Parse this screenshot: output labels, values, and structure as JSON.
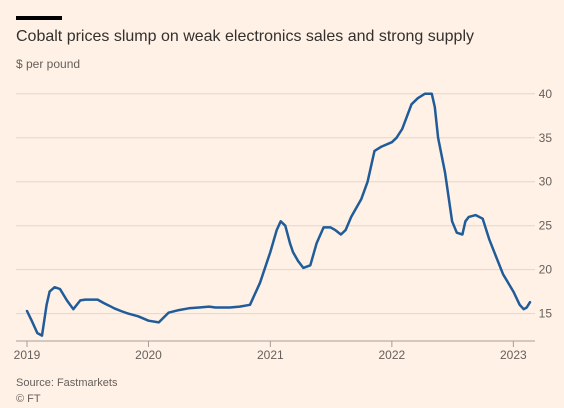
{
  "title": "Cobalt prices slump on weak electronics sales and strong supply",
  "subtitle": "$ per pound",
  "source": "Source: Fastmarkets",
  "copyright": "© FT",
  "colors": {
    "line": "#1f5c99",
    "grid": "#e3d7cc",
    "axis": "#66605c",
    "background": "#fff1e5"
  },
  "chart_data": {
    "type": "line",
    "title": "Cobalt prices slump on weak electronics sales and strong supply",
    "ylabel": "$ per pound",
    "xlabel": "",
    "ylim": [
      12,
      41
    ],
    "xlim": [
      "2019-01-01",
      "2023-03-01"
    ],
    "yticks": [
      15,
      20,
      25,
      30,
      35,
      40
    ],
    "xticks": [
      {
        "label": "2019",
        "date": "2019-01-01"
      },
      {
        "label": "2020",
        "date": "2020-01-01"
      },
      {
        "label": "2021",
        "date": "2021-01-01"
      },
      {
        "label": "2022",
        "date": "2022-01-01"
      },
      {
        "label": "2023",
        "date": "2023-01-01"
      }
    ],
    "grid": true,
    "y_axis_side": "right",
    "series": [
      {
        "x": [
          "2019-01-01",
          "2019-01-15",
          "2019-02-01",
          "2019-02-15",
          "2019-03-01",
          "2019-03-10",
          "2019-03-25",
          "2019-04-10",
          "2019-05-01",
          "2019-05-20",
          "2019-06-10",
          "2019-06-25",
          "2019-07-10",
          "2019-08-01",
          "2019-08-20",
          "2019-09-05",
          "2019-09-20",
          "2019-10-10",
          "2019-11-01",
          "2019-12-01",
          "2020-01-01",
          "2020-02-01",
          "2020-03-01",
          "2020-04-01",
          "2020-05-01",
          "2020-06-01",
          "2020-07-01",
          "2020-07-20",
          "2020-08-10",
          "2020-09-01",
          "2020-10-01",
          "2020-11-01",
          "2020-12-01",
          "2021-01-01",
          "2021-01-20",
          "2021-02-01",
          "2021-02-15",
          "2021-03-01",
          "2021-03-10",
          "2021-03-25",
          "2021-04-10",
          "2021-05-01",
          "2021-05-20",
          "2021-06-10",
          "2021-07-01",
          "2021-07-15",
          "2021-08-01",
          "2021-08-15",
          "2021-09-01",
          "2021-10-01",
          "2021-10-20",
          "2021-11-10",
          "2021-12-01",
          "2022-01-01",
          "2022-01-15",
          "2022-02-01",
          "2022-03-01",
          "2022-03-20",
          "2022-04-10",
          "2022-05-01",
          "2022-05-10",
          "2022-05-20",
          "2022-06-10",
          "2022-07-01",
          "2022-07-15",
          "2022-08-01",
          "2022-08-10",
          "2022-08-20",
          "2022-09-10",
          "2022-10-01",
          "2022-10-20",
          "2022-11-10",
          "2022-12-01",
          "2023-01-01",
          "2023-01-20",
          "2023-02-01",
          "2023-02-10",
          "2023-02-20"
        ],
        "values": [
          15.3,
          14.2,
          12.8,
          12.5,
          16.0,
          17.5,
          18.0,
          17.8,
          16.5,
          15.5,
          16.5,
          16.6,
          16.6,
          16.6,
          16.2,
          15.9,
          15.6,
          15.3,
          15.0,
          14.7,
          14.2,
          14.0,
          15.1,
          15.4,
          15.6,
          15.7,
          15.8,
          15.7,
          15.7,
          15.7,
          15.8,
          16.0,
          18.5,
          22.0,
          24.5,
          25.5,
          25.0,
          23.0,
          22.0,
          21.0,
          20.2,
          20.5,
          23.0,
          24.8,
          24.8,
          24.5,
          24.0,
          24.5,
          26.0,
          28.0,
          30.0,
          33.5,
          34.0,
          34.5,
          35.0,
          36.0,
          38.8,
          39.5,
          40.0,
          40.0,
          38.5,
          35.0,
          31.0,
          25.5,
          24.2,
          24.0,
          25.5,
          26.0,
          26.2,
          25.8,
          23.5,
          21.5,
          19.5,
          17.5,
          16.0,
          15.5,
          15.7,
          16.3
        ]
      }
    ]
  }
}
